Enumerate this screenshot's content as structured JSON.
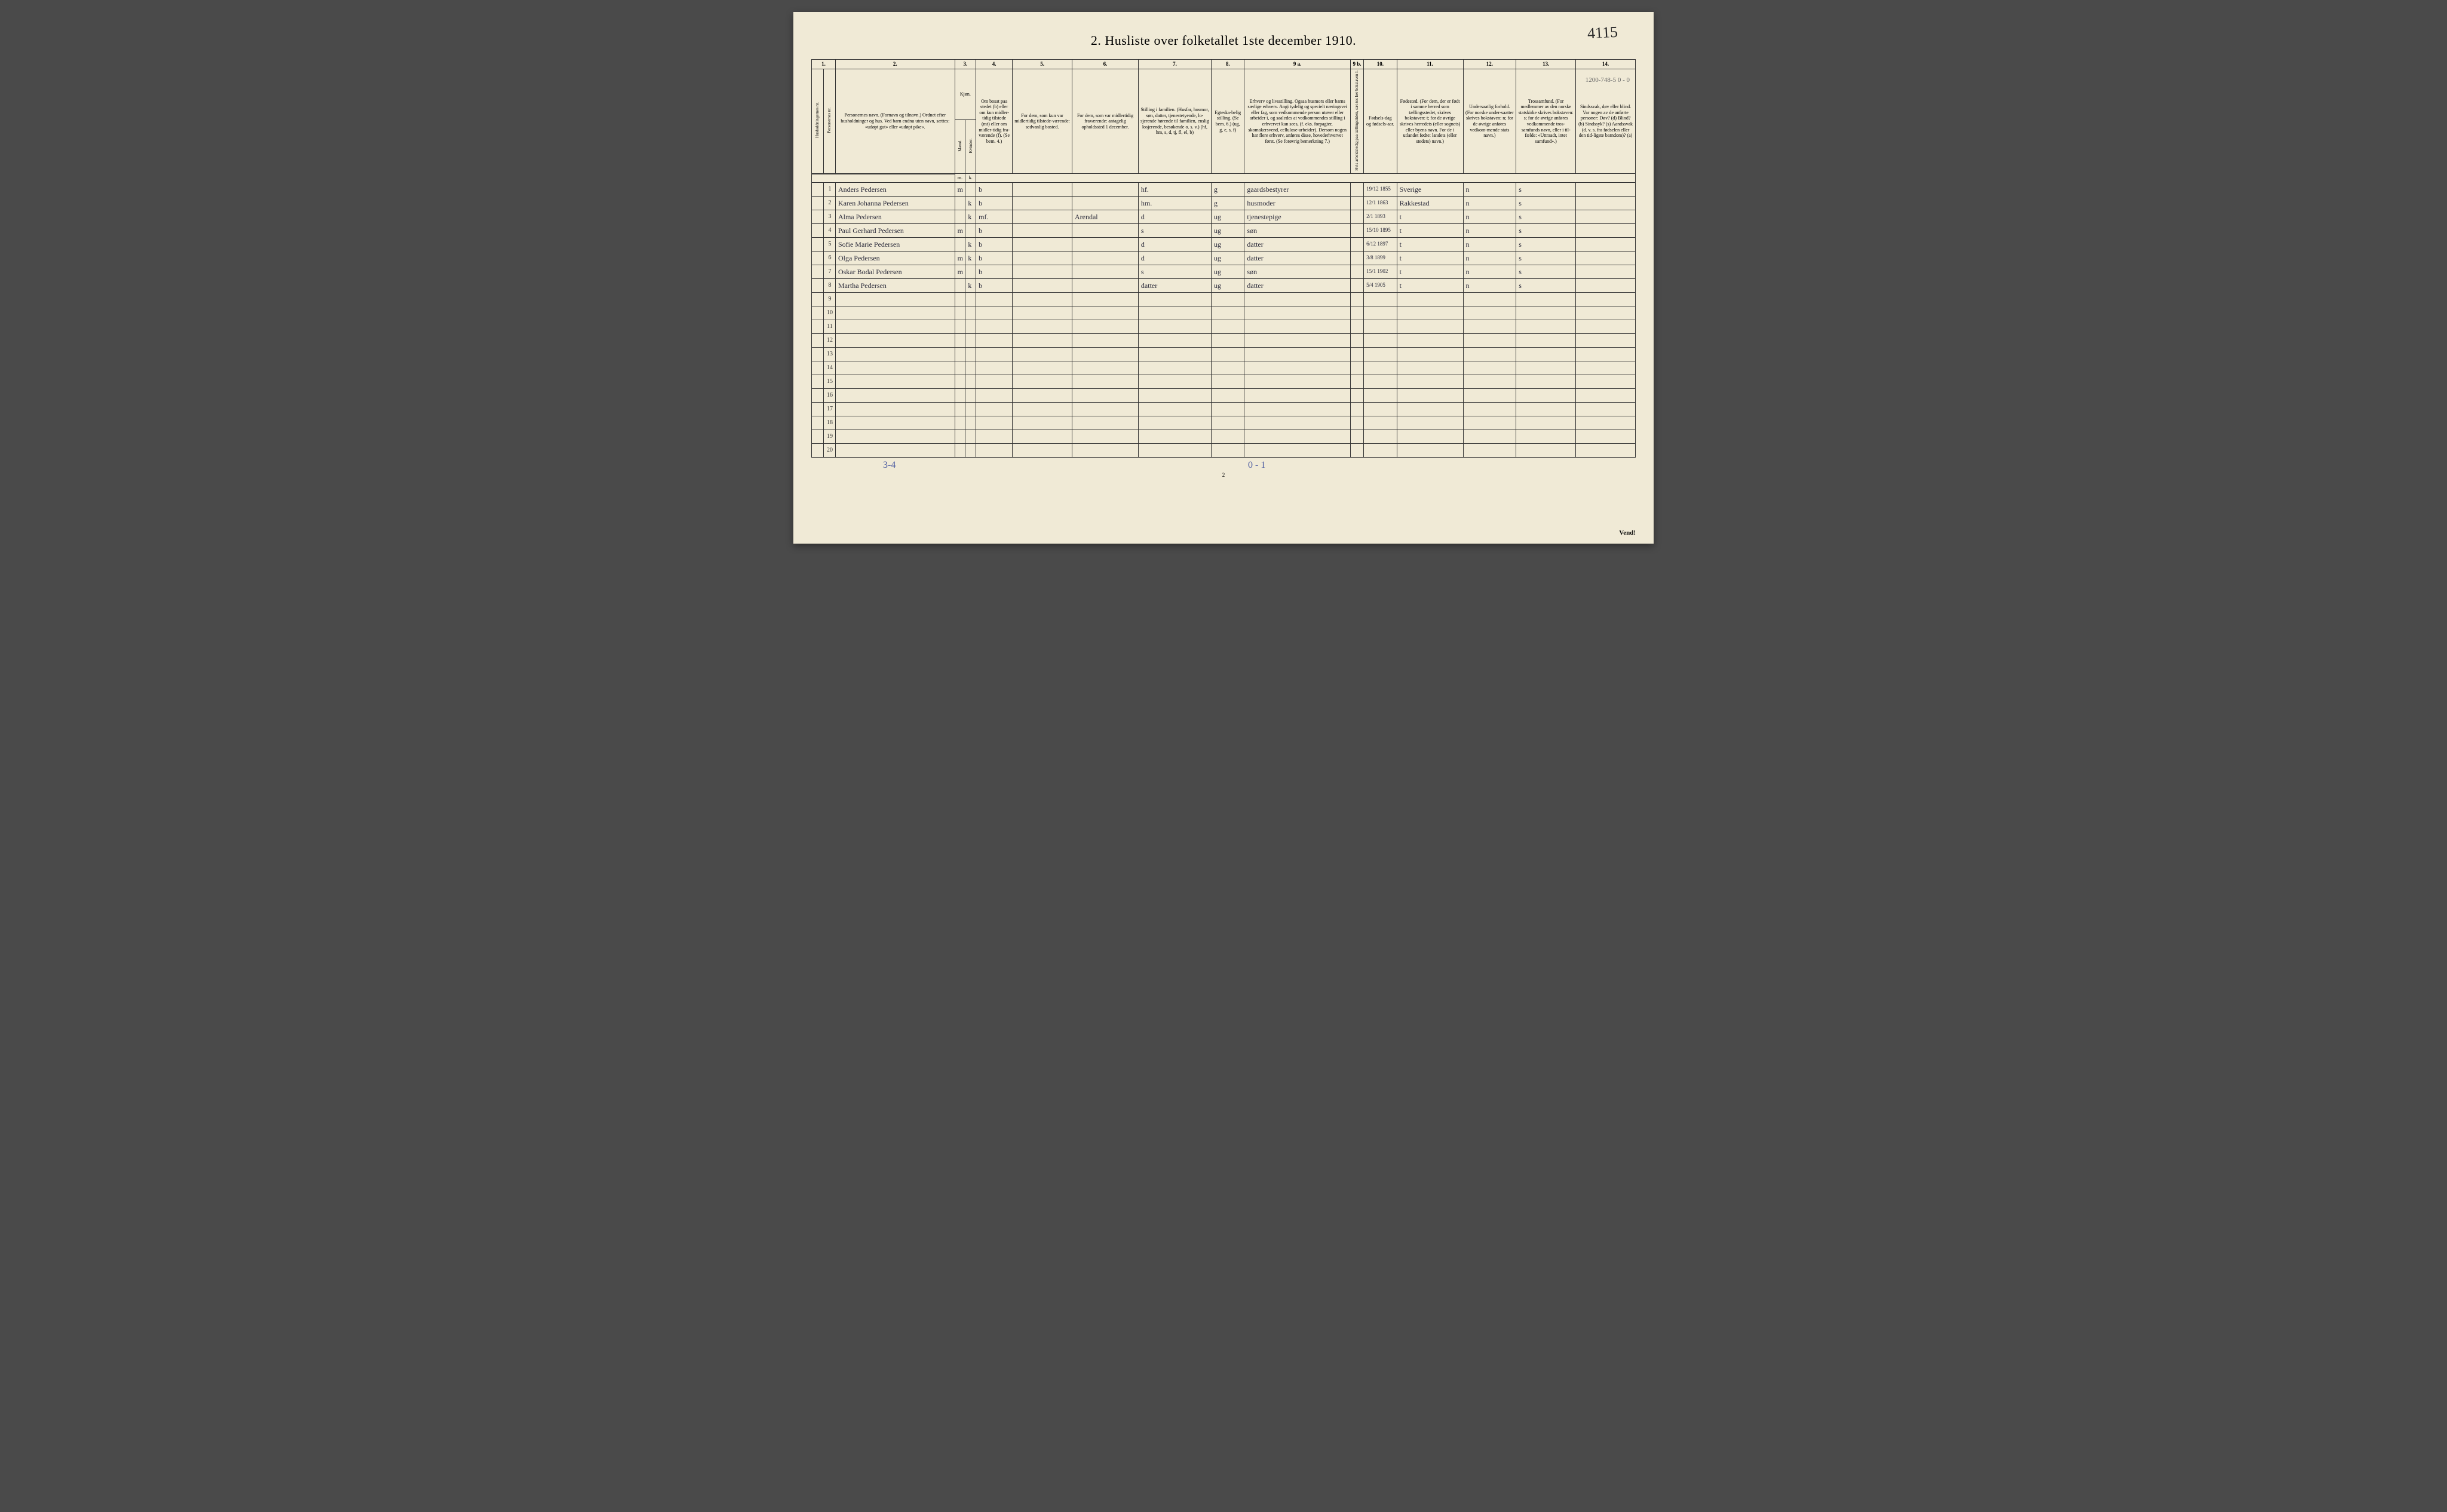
{
  "pageNumberHand": "4115",
  "topRightScribble": "1200-748-5\n0 - 0",
  "title": "2.  Husliste over folketallet 1ste december 1910.",
  "colNumbers": [
    "1.",
    "2.",
    "3.",
    "4.",
    "5.",
    "6.",
    "7.",
    "8.",
    "9 a.",
    "9 b.",
    "10.",
    "11.",
    "12.",
    "13.",
    "14."
  ],
  "headers": {
    "h1a": "Husholdningernes nr.",
    "h1b": "Personernes nr.",
    "h2": "Personernes navn.\n(Fornavn og tilnavn.)\nOrdnet efter husholdninger og hus.\nVed barn endnu uten navn, sættes: «udøpt gut» eller «udøpt pike».",
    "h3": "Kjøn.",
    "h3m": "Mænd.",
    "h3k": "Kvinder.",
    "h4": "Om bosat paa stedet (b) eller om kun midler-tidig tilstede (mt) eller om midler-tidig fra-værende (f).\n(Se bem. 4.)",
    "h5": "For dem, som kun var midlertidig tilstede-værende:\nsedvanlig bosted.",
    "h6": "For dem, som var midlertidig fraværende:\nantagelig opholdssted 1 december.",
    "h7": "Stilling i familien.\n(Husfar, husmor, søn, datter, tjenestetyende, lo-sjerende hørende til familien, enslig losjerende, besøkende o. s. v.)\n(hf, hm, s, d, tj, fl, el, b)",
    "h8": "Egteska-belig stilling.\n(Se bem. 6.)\n(ug, g, e, s, f)",
    "h9a": "Erhverv og livsstilling.\nOgsaa husmors eller barns særlige erhverv. Angi tydelig og specielt næringsvei eller fag, som vedkommende person utøver eller arbeider i, og saaledes at vedkommendes stilling i erhvervet kan sees, (f. eks. forpagter, skomakersvend, cellulose-arbeider). Dersom nogen har flere erhverv, anføres disse, hovederhvervet først.\n(Se forøvrig bemerkning 7.)",
    "h9b": "Hvis arbeidsledig paa tællingstiden, sæt-tes her bokstaven l.",
    "h10": "Fødsels-dag og fødsels-aar.",
    "h11": "Fødested.\n(For dem, der er født i samme herred som tællingsstedet, skrives bokstaven: t; for de øvrige skrives herredets (eller sognets) eller byens navn. For de i utlandet fødte: landets (eller stedets) navn.)",
    "h12": "Undersaatlig forhold.\n(For norske under-saatter skrives bokstaven: n; for de øvrige anføres vedkom-mende stats navn.)",
    "h13": "Trossamfund.\n(For medlemmer av den norske statskirke skrives bokstaven: s; for de øvrige anføres vedkommende tros-samfunds navn, eller i til-fælde: «Uttraadt, intet samfund».)",
    "h14": "Sindssvak, døv eller blind.\nVar nogen av de anførte personer:\nDøv?  (d)\nBlind?  (b)\nSindssyk? (s)\nAandssvak (d. v. s. fra fødselen eller den tid-ligste barndom)? (a)",
    "mk_m": "m.",
    "mk_k": "k."
  },
  "rows": [
    {
      "n": "1",
      "name": "Anders Pedersen",
      "m": "m",
      "k": "",
      "b": "b",
      "c5": "",
      "c6": "",
      "c7": "hf.",
      "c8": "g",
      "c9a": "gaardsbestyrer",
      "c9b": "",
      "c10": "19/12 1855",
      "c11": "Sverige",
      "c12": "n",
      "c13": "s",
      "c14": ""
    },
    {
      "n": "2",
      "name": "Karen Johanna Pedersen",
      "m": "",
      "k": "k",
      "b": "b",
      "c5": "",
      "c6": "",
      "c7": "hm.",
      "c8": "g",
      "c9a": "husmoder",
      "c9b": "",
      "c10": "12/1 1863",
      "c11": "Rakkestad",
      "c12": "n",
      "c13": "s",
      "c14": ""
    },
    {
      "n": "3",
      "name": "Alma Pedersen",
      "m": "",
      "k": "k",
      "b": "mf.",
      "c5": "",
      "c6": "Arendal",
      "c7": "d",
      "c8": "ug",
      "c9a": "tjenestepige",
      "c9b": "",
      "c10": "2/1 1893",
      "c11": "t",
      "c12": "n",
      "c13": "s",
      "c14": ""
    },
    {
      "n": "4",
      "name": "Paul Gerhard Pedersen",
      "m": "m",
      "k": "",
      "b": "b",
      "c5": "",
      "c6": "",
      "c7": "s",
      "c8": "ug",
      "c9a": "søn",
      "c9b": "",
      "c10": "15/10 1895",
      "c11": "t",
      "c12": "n",
      "c13": "s",
      "c14": ""
    },
    {
      "n": "5",
      "name": "Sofie Marie Pedersen",
      "m": "",
      "k": "k",
      "b": "b",
      "c5": "",
      "c6": "",
      "c7": "d",
      "c8": "ug",
      "c9a": "datter",
      "c9b": "",
      "c10": "6/12 1897",
      "c11": "t",
      "c12": "n",
      "c13": "s",
      "c14": ""
    },
    {
      "n": "6",
      "name": "Olga Pedersen",
      "m": "m",
      "k": "k",
      "b": "b",
      "c5": "",
      "c6": "",
      "c7": "d",
      "c8": "ug",
      "c9a": "datter",
      "c9b": "",
      "c10": "3/8 1899",
      "c11": "t",
      "c12": "n",
      "c13": "s",
      "c14": ""
    },
    {
      "n": "7",
      "name": "Oskar Bodal Pedersen",
      "m": "m",
      "k": "",
      "b": "b",
      "c5": "",
      "c6": "",
      "c7": "s",
      "c8": "ug",
      "c9a": "søn",
      "c9b": "",
      "c10": "15/1 1902",
      "c11": "t",
      "c12": "n",
      "c13": "s",
      "c14": ""
    },
    {
      "n": "8",
      "name": "Martha Pedersen",
      "m": "",
      "k": "k",
      "b": "b",
      "c5": "",
      "c6": "",
      "c7": "datter",
      "c8": "ug",
      "c9a": "datter",
      "c9b": "",
      "c10": "5/4 1905",
      "c11": "t",
      "c12": "n",
      "c13": "s",
      "c14": ""
    }
  ],
  "emptyRows": [
    "9",
    "10",
    "11",
    "12",
    "13",
    "14",
    "15",
    "16",
    "17",
    "18",
    "19",
    "20"
  ],
  "bottomLeft": "3-4",
  "bottomMid": "0 - 1",
  "footerPage": "2",
  "vend": "Vend!",
  "colors": {
    "paper": "#f0ead6",
    "ink": "#333333",
    "handwriting": "#2a2a3a",
    "pencil": "#4a5aa0",
    "background": "#4a4a4a"
  },
  "typography": {
    "title_fontsize": 22,
    "header_fontsize": 8,
    "body_fontsize": 12,
    "handwriting_family": "cursive"
  }
}
